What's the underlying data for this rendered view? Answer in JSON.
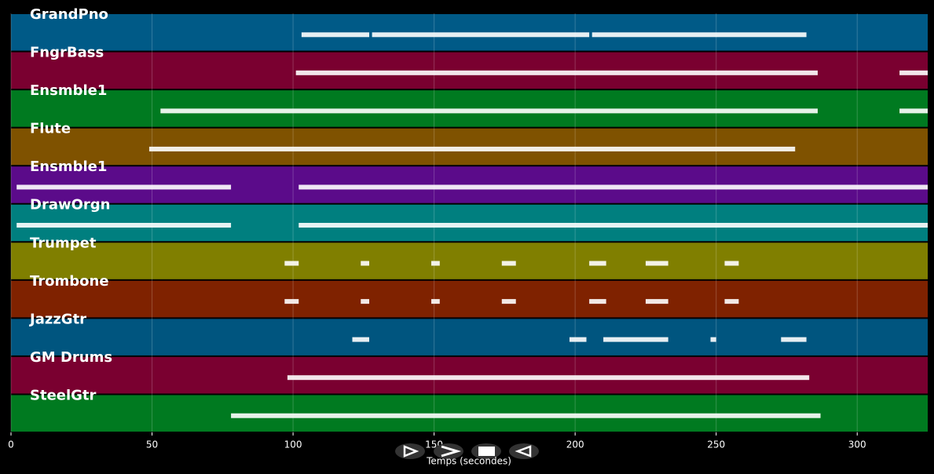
{
  "chart_data": {
    "type": "pianoroll",
    "xlabel": "Temps (secondes)",
    "xlim": [
      0,
      325
    ],
    "xticks": [
      0,
      50,
      100,
      150,
      200,
      250,
      300
    ],
    "grid": true,
    "tracks": [
      {
        "name": "GrandPno",
        "color": "#005a87",
        "segments": [
          [
            103,
            127
          ],
          [
            128,
            205
          ],
          [
            206,
            282
          ]
        ]
      },
      {
        "name": "FngrBass",
        "color": "#7a0030",
        "segments": [
          [
            101,
            286
          ],
          [
            315,
            325
          ]
        ]
      },
      {
        "name": "Ensmble1",
        "color": "#007a20",
        "segments": [
          [
            53,
            286
          ],
          [
            315,
            325
          ]
        ]
      },
      {
        "name": "Flute",
        "color": "#7f5200",
        "segments": [
          [
            49,
            278
          ]
        ]
      },
      {
        "name": "Ensmble1",
        "color": "#5b0b8a",
        "segments": [
          [
            2,
            78
          ],
          [
            102,
            325
          ]
        ]
      },
      {
        "name": "DrawOrgn",
        "color": "#007f7f",
        "segments": [
          [
            2,
            78
          ],
          [
            102,
            325
          ]
        ]
      },
      {
        "name": "Trumpet",
        "color": "#807f00",
        "segments": [
          [
            97,
            102
          ],
          [
            124,
            127
          ],
          [
            149,
            152
          ],
          [
            174,
            179
          ],
          [
            205,
            211
          ],
          [
            225,
            233
          ],
          [
            253,
            258
          ]
        ]
      },
      {
        "name": "Trombone",
        "color": "#7f2200",
        "segments": [
          [
            97,
            102
          ],
          [
            124,
            127
          ],
          [
            149,
            152
          ],
          [
            174,
            179
          ],
          [
            205,
            211
          ],
          [
            225,
            233
          ],
          [
            253,
            258
          ]
        ]
      },
      {
        "name": "JazzGtr",
        "color": "#00557f",
        "segments": [
          [
            121,
            127
          ],
          [
            198,
            204
          ],
          [
            210,
            233
          ],
          [
            248,
            250
          ],
          [
            273,
            282
          ]
        ]
      },
      {
        "name": "GM Drums",
        "color": "#7a0030",
        "segments": [
          [
            98,
            283
          ]
        ]
      },
      {
        "name": "SteelGtr",
        "color": "#007a20",
        "segments": [
          [
            78,
            287
          ]
        ]
      }
    ]
  }
}
